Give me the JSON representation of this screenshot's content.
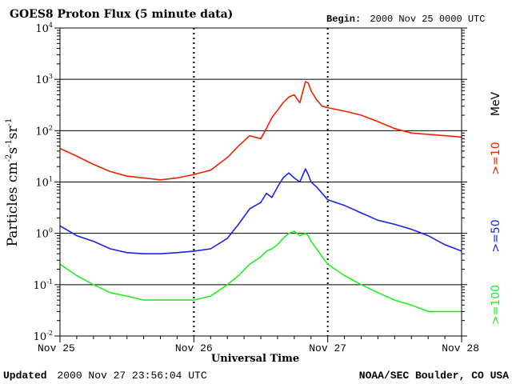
{
  "chart_data": {
    "type": "line",
    "title": "GOES8 Proton Flux (5 minute data)",
    "begin": {
      "label": "Begin:",
      "value": "2000 Nov 25 0000 UTC"
    },
    "xlabel": "Universal Time",
    "ylabel": {
      "base": "Particles cm",
      "exp1": "-2",
      "s": "s",
      "exp2": "-1",
      "sr": "sr",
      "exp3": "-1"
    },
    "y_scale": "log",
    "ylim": [
      0.01,
      10000
    ],
    "y_ticks": [
      {
        "value": 10000,
        "base": "10",
        "exp": "4"
      },
      {
        "value": 1000,
        "base": "10",
        "exp": "3"
      },
      {
        "value": 100,
        "base": "10",
        "exp": "2"
      },
      {
        "value": 10,
        "base": "10",
        "exp": "1"
      },
      {
        "value": 1,
        "base": "10",
        "exp": "0"
      },
      {
        "value": 0.1,
        "base": "10",
        "exp": "-1"
      },
      {
        "value": 0.01,
        "base": "10",
        "exp": "-2"
      }
    ],
    "x_range_days": [
      "2000-11-25",
      "2000-11-28"
    ],
    "x_ticks": [
      {
        "date": "2000-11-25",
        "label": "Nov 25"
      },
      {
        "date": "2000-11-26",
        "label": "Nov 26"
      },
      {
        "date": "2000-11-27",
        "label": "Nov 27"
      },
      {
        "date": "2000-11-28",
        "label": "Nov 28"
      }
    ],
    "grid": true,
    "series": [
      {
        "name": ">=10",
        "color": "#ee2200",
        "x": [
          "2000-11-25T00:00",
          "2000-11-25T03:00",
          "2000-11-25T06:00",
          "2000-11-25T09:00",
          "2000-11-25T12:00",
          "2000-11-25T15:00",
          "2000-11-25T18:00",
          "2000-11-25T21:00",
          "2000-11-26T00:00",
          "2000-11-26T03:00",
          "2000-11-26T06:00",
          "2000-11-26T08:00",
          "2000-11-26T10:00",
          "2000-11-26T12:00",
          "2000-11-26T13:00",
          "2000-11-26T14:00",
          "2000-11-26T15:00",
          "2000-11-26T16:00",
          "2000-11-26T17:00",
          "2000-11-26T18:00",
          "2000-11-26T19:00",
          "2000-11-26T20:00",
          "2000-11-26T20:30",
          "2000-11-26T21:00",
          "2000-11-26T22:00",
          "2000-11-26T23:00",
          "2000-11-27T00:00",
          "2000-11-27T03:00",
          "2000-11-27T06:00",
          "2000-11-27T09:00",
          "2000-11-27T12:00",
          "2000-11-27T15:00",
          "2000-11-27T18:00",
          "2000-11-27T21:00",
          "2000-11-28T00:00"
        ],
        "values": [
          45,
          32,
          22,
          16,
          13,
          12,
          11,
          12,
          14,
          17,
          30,
          50,
          80,
          70,
          110,
          180,
          250,
          350,
          450,
          500,
          350,
          900,
          850,
          600,
          400,
          300,
          280,
          240,
          200,
          150,
          110,
          90,
          85,
          80,
          75
        ]
      },
      {
        "name": ">=50",
        "color": "#1a22ee",
        "x": [
          "2000-11-25T00:00",
          "2000-11-25T03:00",
          "2000-11-25T06:00",
          "2000-11-25T09:00",
          "2000-11-25T12:00",
          "2000-11-25T15:00",
          "2000-11-25T18:00",
          "2000-11-25T21:00",
          "2000-11-26T00:00",
          "2000-11-26T03:00",
          "2000-11-26T06:00",
          "2000-11-26T08:00",
          "2000-11-26T10:00",
          "2000-11-26T12:00",
          "2000-11-26T13:00",
          "2000-11-26T14:00",
          "2000-11-26T15:00",
          "2000-11-26T16:00",
          "2000-11-26T17:00",
          "2000-11-26T18:00",
          "2000-11-26T19:00",
          "2000-11-26T20:00",
          "2000-11-26T20:30",
          "2000-11-26T21:00",
          "2000-11-26T22:00",
          "2000-11-26T23:00",
          "2000-11-27T00:00",
          "2000-11-27T03:00",
          "2000-11-27T06:00",
          "2000-11-27T09:00",
          "2000-11-27T12:00",
          "2000-11-27T15:00",
          "2000-11-27T18:00",
          "2000-11-27T21:00",
          "2000-11-28T00:00"
        ],
        "values": [
          1.4,
          0.9,
          0.7,
          0.5,
          0.42,
          0.4,
          0.4,
          0.42,
          0.45,
          0.5,
          0.8,
          1.5,
          3,
          4,
          6,
          5,
          8,
          12,
          15,
          12,
          10,
          18,
          14,
          10,
          8,
          6,
          4.5,
          3.5,
          2.5,
          1.8,
          1.5,
          1.2,
          0.9,
          0.6,
          0.45
        ]
      },
      {
        "name": ">=100",
        "color": "#22ee22",
        "x": [
          "2000-11-25T00:00",
          "2000-11-25T03:00",
          "2000-11-25T06:00",
          "2000-11-25T09:00",
          "2000-11-25T12:00",
          "2000-11-25T15:00",
          "2000-11-25T18:00",
          "2000-11-25T21:00",
          "2000-11-26T00:00",
          "2000-11-26T03:00",
          "2000-11-26T06:00",
          "2000-11-26T08:00",
          "2000-11-26T10:00",
          "2000-11-26T12:00",
          "2000-11-26T13:00",
          "2000-11-26T14:00",
          "2000-11-26T15:00",
          "2000-11-26T16:00",
          "2000-11-26T17:00",
          "2000-11-26T18:00",
          "2000-11-26T19:00",
          "2000-11-26T20:00",
          "2000-11-26T20:30",
          "2000-11-26T21:00",
          "2000-11-26T22:00",
          "2000-11-26T23:00",
          "2000-11-27T00:00",
          "2000-11-27T03:00",
          "2000-11-27T06:00",
          "2000-11-27T09:00",
          "2000-11-27T12:00",
          "2000-11-27T15:00",
          "2000-11-27T18:00",
          "2000-11-27T21:00",
          "2000-11-28T00:00"
        ],
        "values": [
          0.25,
          0.15,
          0.1,
          0.07,
          0.06,
          0.05,
          0.05,
          0.05,
          0.05,
          0.06,
          0.1,
          0.15,
          0.25,
          0.35,
          0.45,
          0.5,
          0.6,
          0.8,
          1.0,
          1.1,
          0.9,
          1.0,
          0.9,
          0.7,
          0.5,
          0.35,
          0.25,
          0.15,
          0.1,
          0.07,
          0.05,
          0.04,
          0.03,
          0.03,
          0.03
        ]
      }
    ],
    "right_labels": {
      "mev": "MeV",
      "ge10": ">=10",
      "ge50": ">=50",
      "ge100": ">=100"
    }
  },
  "footer": {
    "updated_label": "Updated",
    "updated_value": "2000 Nov 27 23:56:04 UTC",
    "source": "NOAA/SEC Boulder, CO USA"
  }
}
